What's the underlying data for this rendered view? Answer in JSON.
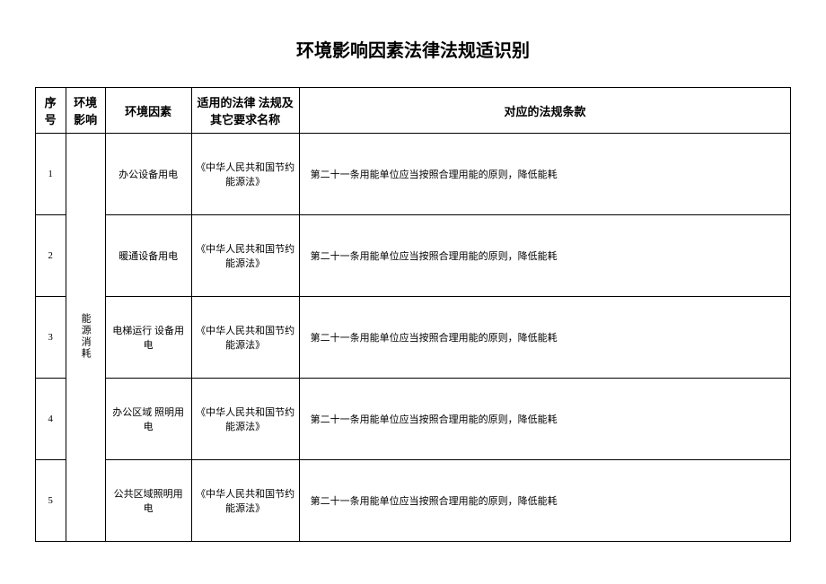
{
  "title": "环境影响因素法律法规适识别",
  "title_fontsize": "20px",
  "header_fontsize": "13px",
  "body_fontsize": "11px",
  "columns": {
    "seq": "序号",
    "category": "环境 影响",
    "factor": "环境因素",
    "law": "适用的法律 法规及 其它要求名称",
    "article": "对应的法规条款"
  },
  "category_label": "能源消耗",
  "rows": [
    {
      "seq": "1",
      "factor": "办公设备用电",
      "law": "《中华人民共和国节约能源法》",
      "article": "第二十一条用能单位应当按照合理用能的原则，降低能耗"
    },
    {
      "seq": "2",
      "factor": "暖通设备用电",
      "law": "《中华人民共和国节约能源法》",
      "article": "第二十一条用能单位应当按照合理用能的原则，降低能耗"
    },
    {
      "seq": "3",
      "factor": "电梯运行 设备用电",
      "law": "《中华人民共和国节约能源法》",
      "article": "第二十一条用能单位应当按照合理用能的原则，降低能耗"
    },
    {
      "seq": "4",
      "factor": "办公区域 照明用电",
      "law": "《中华人民共和国节约能源法》",
      "article": "第二十一条用能单位应当按照合理用能的原则，降低能耗"
    },
    {
      "seq": "5",
      "factor": "公共区域照明用电",
      "law": "《中华人民共和国节约能源法》",
      "article": "第二十一条用能单位应当按照合理用能的原则，降低能耗"
    }
  ]
}
